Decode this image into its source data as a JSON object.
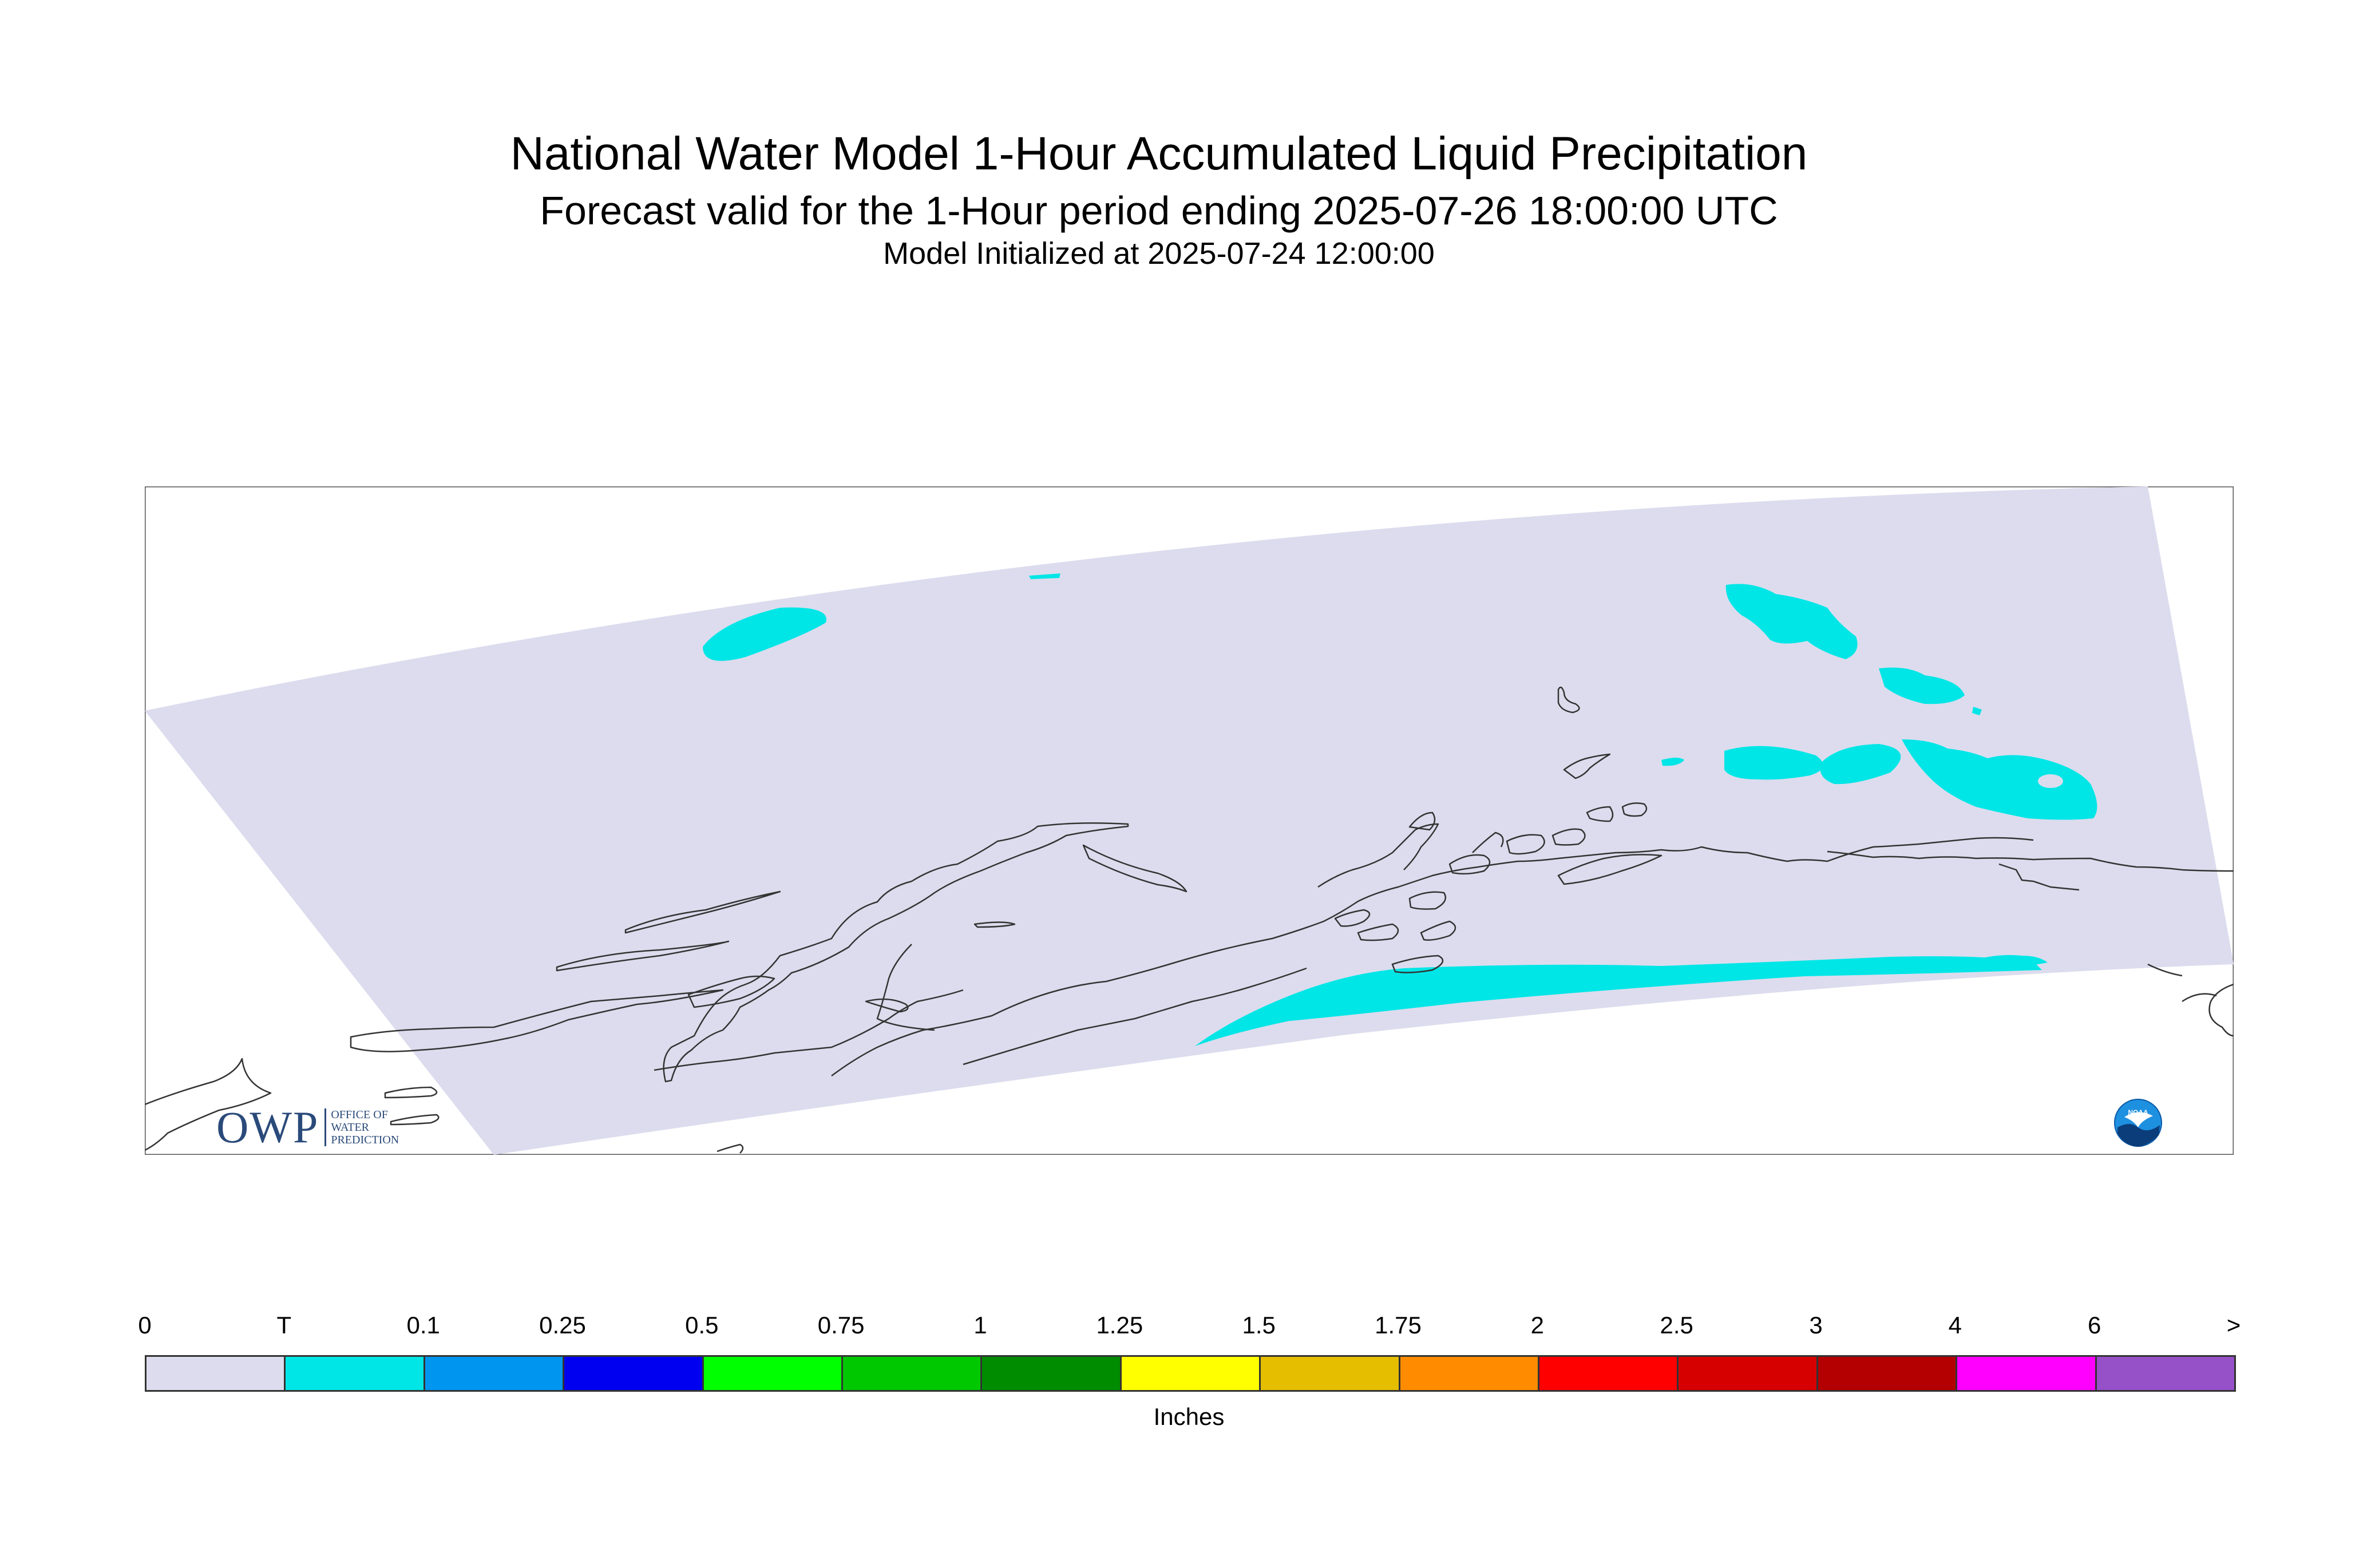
{
  "header": {
    "title": "National Water Model 1-Hour Accumulated Liquid Precipitation",
    "subtitle": "Forecast valid for the 1-Hour period ending 2025-07-26 18:00:00 UTC",
    "init": "Model Initialized at 2025-07-24 12:00:00"
  },
  "legend": {
    "labels": [
      "0",
      "T",
      "0.1",
      "0.25",
      "0.5",
      "0.75",
      "1",
      "1.25",
      "1.5",
      "1.75",
      "2",
      "2.5",
      "3",
      "4",
      "6",
      ">"
    ],
    "colors": [
      "#dcdcee",
      "#00e6e6",
      "#0096f0",
      "#0000f0",
      "#00ff00",
      "#00c800",
      "#008c00",
      "#ffff00",
      "#e6be00",
      "#ff8c00",
      "#ff0000",
      "#d70000",
      "#b40000",
      "#ff00ff",
      "#9650c8"
    ],
    "units": "Inches"
  },
  "map": {
    "domain_fill": "#dcdcee",
    "precip_color": "#00e6e6",
    "coast_color": "#333333"
  },
  "logos": {
    "owp_big": "OWP",
    "owp_small": [
      "Office of",
      "Water",
      "Prediction"
    ],
    "noaa": "NOAA"
  }
}
